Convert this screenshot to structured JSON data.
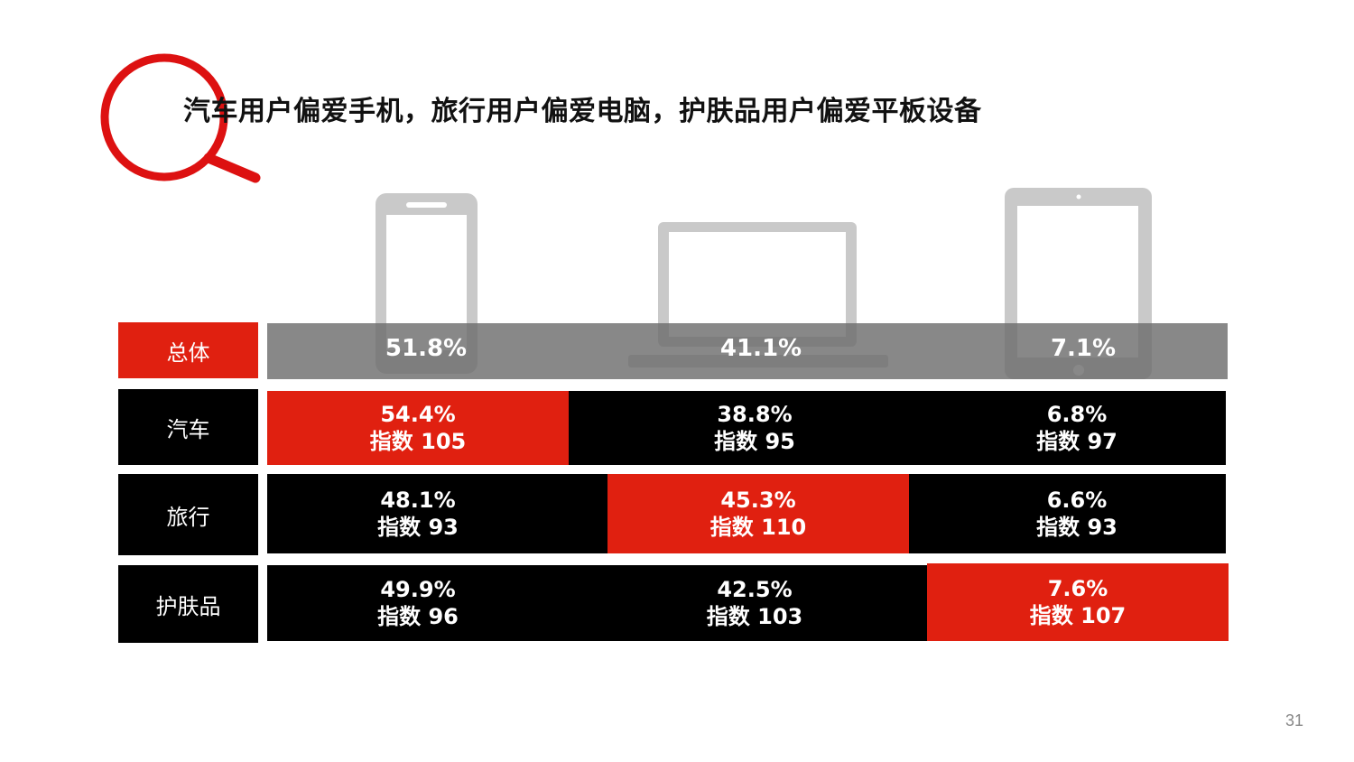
{
  "title": "汽车用户偏爱手机，旅行用户偏爱电脑，护肤品用户偏爱平板设备",
  "page_number": "31",
  "colors": {
    "highlight": "#e02010",
    "band": "#000000",
    "overall_band": "#7a7a7a",
    "icon": "#c9c9c9",
    "magnifier": "#dd1111"
  },
  "icons": [
    "magnifier-icon",
    "phone-icon",
    "laptop-icon",
    "tablet-icon"
  ],
  "chart_data": {
    "type": "table",
    "columns": [
      "手机",
      "电脑",
      "平板"
    ],
    "rows": [
      {
        "label": "总体",
        "values": [
          "51.8%",
          "41.1%",
          "7.1%"
        ]
      },
      {
        "label": "汽车",
        "values": [
          "54.4%",
          "38.8%",
          "6.8%"
        ],
        "index": [
          "指数 105",
          "指数 95",
          "指数 97"
        ],
        "highlight": 0
      },
      {
        "label": "旅行",
        "values": [
          "48.1%",
          "45.3%",
          "6.6%"
        ],
        "index": [
          "指数 93",
          "指数 110",
          "指数 93"
        ],
        "highlight": 1
      },
      {
        "label": "护肤品",
        "values": [
          "49.9%",
          "42.5%",
          "7.6%"
        ],
        "index": [
          "指数 96",
          "指数 103",
          "指数 107"
        ],
        "highlight": 2
      }
    ]
  }
}
